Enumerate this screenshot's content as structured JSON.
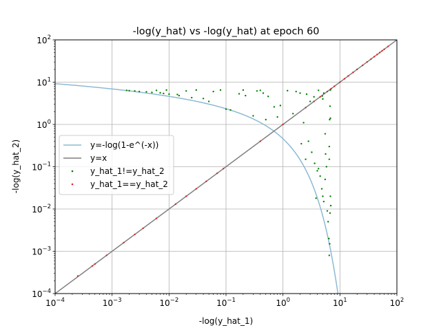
{
  "chart_data": {
    "type": "scatter",
    "title": "-log(y_hat) vs -log(y_hat) at epoch 60",
    "xlabel": "-log(y_hat_1)",
    "ylabel": "-log(y_hat_2)",
    "xscale": "log",
    "yscale": "log",
    "xlim": [
      0.0001,
      100
    ],
    "ylim": [
      0.0001,
      100
    ],
    "grid": true,
    "legend_position": "center-left",
    "x_ticks": [
      {
        "value": 0.0001,
        "base": "10",
        "exp": "−4"
      },
      {
        "value": 0.001,
        "base": "10",
        "exp": "−3"
      },
      {
        "value": 0.01,
        "base": "10",
        "exp": "−2"
      },
      {
        "value": 0.1,
        "base": "10",
        "exp": "−1"
      },
      {
        "value": 1,
        "base": "10",
        "exp": "0"
      },
      {
        "value": 10,
        "base": "10",
        "exp": "1"
      },
      {
        "value": 100,
        "base": "10",
        "exp": "2"
      }
    ],
    "y_ticks": [
      {
        "value": 0.0001,
        "base": "10",
        "exp": "−4"
      },
      {
        "value": 0.001,
        "base": "10",
        "exp": "−3"
      },
      {
        "value": 0.01,
        "base": "10",
        "exp": "−2"
      },
      {
        "value": 0.1,
        "base": "10",
        "exp": "−1"
      },
      {
        "value": 1,
        "base": "10",
        "exp": "0"
      },
      {
        "value": 10,
        "base": "10",
        "exp": "1"
      },
      {
        "value": 100,
        "base": "10",
        "exp": "2"
      }
    ],
    "series": [
      {
        "name": "y=-log(1-e^(-x))",
        "kind": "line",
        "function": "-log(1-exp(-x))",
        "color": "#8cb9d4"
      },
      {
        "name": "y=x",
        "kind": "line",
        "function": "x",
        "color": "#7f7f7f"
      },
      {
        "name": "y_hat_1!=y_hat_2",
        "kind": "scatter",
        "color": "#008000",
        "points": [
          [
            0.0018,
            6.4
          ],
          [
            0.002,
            6.3
          ],
          [
            0.0025,
            6.2
          ],
          [
            0.003,
            6.0
          ],
          [
            0.004,
            5.9
          ],
          [
            0.005,
            5.7
          ],
          [
            0.006,
            6.4
          ],
          [
            0.007,
            5.6
          ],
          [
            0.008,
            5.4
          ],
          [
            0.009,
            6.5
          ],
          [
            0.01,
            5.2
          ],
          [
            0.014,
            5.1
          ],
          [
            0.015,
            4.8
          ],
          [
            0.02,
            6.2
          ],
          [
            0.025,
            4.3
          ],
          [
            0.03,
            6.5
          ],
          [
            0.04,
            4.1
          ],
          [
            0.05,
            3.5
          ],
          [
            0.06,
            6.0
          ],
          [
            0.08,
            6.5
          ],
          [
            0.1,
            2.3
          ],
          [
            0.12,
            2.2
          ],
          [
            0.17,
            5.3
          ],
          [
            0.2,
            6.5
          ],
          [
            0.22,
            4.8
          ],
          [
            0.3,
            1.6
          ],
          [
            0.35,
            6.2
          ],
          [
            0.4,
            6.4
          ],
          [
            0.45,
            5.5
          ],
          [
            0.5,
            1.3
          ],
          [
            0.55,
            4.6
          ],
          [
            0.7,
            2.6
          ],
          [
            0.8,
            1.5
          ],
          [
            0.9,
            2.8
          ],
          [
            1.2,
            6.3
          ],
          [
            1.5,
            1.8
          ],
          [
            1.7,
            6.0
          ],
          [
            2.0,
            5.5
          ],
          [
            2.1,
            0.35
          ],
          [
            2.3,
            1.1
          ],
          [
            2.5,
            0.15
          ],
          [
            2.6,
            5.2
          ],
          [
            2.8,
            0.4
          ],
          [
            3.0,
            3.5
          ],
          [
            3.2,
            0.22
          ],
          [
            3.5,
            4.5
          ],
          [
            3.6,
            0.12
          ],
          [
            4.0,
            0.08
          ],
          [
            4.2,
            0.09
          ],
          [
            4.5,
            0.06
          ],
          [
            4.8,
            0.03
          ],
          [
            5.0,
            0.02
          ],
          [
            5.0,
            4.0
          ],
          [
            5.2,
            0.015
          ],
          [
            5.5,
            0.05
          ],
          [
            5.6,
            0.2
          ],
          [
            5.8,
            0.1
          ],
          [
            6.0,
            0.009
          ],
          [
            6.2,
            0.005
          ],
          [
            6.4,
            0.002
          ],
          [
            6.5,
            0.3
          ],
          [
            6.7,
            0.008
          ],
          [
            6.6,
            1.3
          ],
          [
            6.7,
            2.7
          ],
          [
            6.8,
            1.4
          ],
          [
            6.9,
            0.012
          ],
          [
            6.5,
            0.0008
          ],
          [
            6.6,
            0.0015
          ],
          [
            4.9,
            4.7
          ],
          [
            5.2,
            5.5
          ],
          [
            6.8,
            6.5
          ],
          [
            4.2,
            6.4
          ],
          [
            5.5,
            0.6
          ],
          [
            3.8,
            0.018
          ],
          [
            6.5,
            0.15
          ],
          [
            6.8,
            0.02
          ]
        ]
      },
      {
        "name": "y_hat_1==y_hat_2",
        "kind": "scatter",
        "color": "#d62728",
        "points": [
          [
            0.00025,
            0.00026
          ],
          [
            0.00045,
            0.00045
          ],
          [
            0.0005,
            0.0005
          ],
          [
            0.0008,
            0.0008
          ],
          [
            0.0016,
            0.0016
          ],
          [
            0.0025,
            0.0025
          ],
          [
            0.0035,
            0.0035
          ],
          [
            0.006,
            0.006
          ],
          [
            0.013,
            0.013
          ],
          [
            0.02,
            0.02
          ],
          [
            0.03,
            0.03
          ],
          [
            0.045,
            0.045
          ],
          [
            0.07,
            0.07
          ],
          [
            0.09,
            0.09
          ],
          [
            0.4,
            0.4
          ],
          [
            1.0,
            1.0
          ],
          [
            2.5,
            2.5
          ],
          [
            3.5,
            3.5
          ],
          [
            4.5,
            4.5
          ],
          [
            6.0,
            6.0
          ],
          [
            7.0,
            7.0
          ],
          [
            8.0,
            8.0
          ],
          [
            10,
            10
          ],
          [
            12,
            12
          ],
          [
            14,
            14
          ],
          [
            17,
            17
          ],
          [
            20,
            20
          ],
          [
            25,
            25
          ],
          [
            30,
            30
          ],
          [
            35,
            35
          ],
          [
            40,
            40
          ],
          [
            45,
            45
          ],
          [
            50,
            50
          ],
          [
            55,
            55
          ],
          [
            60,
            60
          ],
          [
            70,
            70
          ]
        ]
      }
    ]
  }
}
